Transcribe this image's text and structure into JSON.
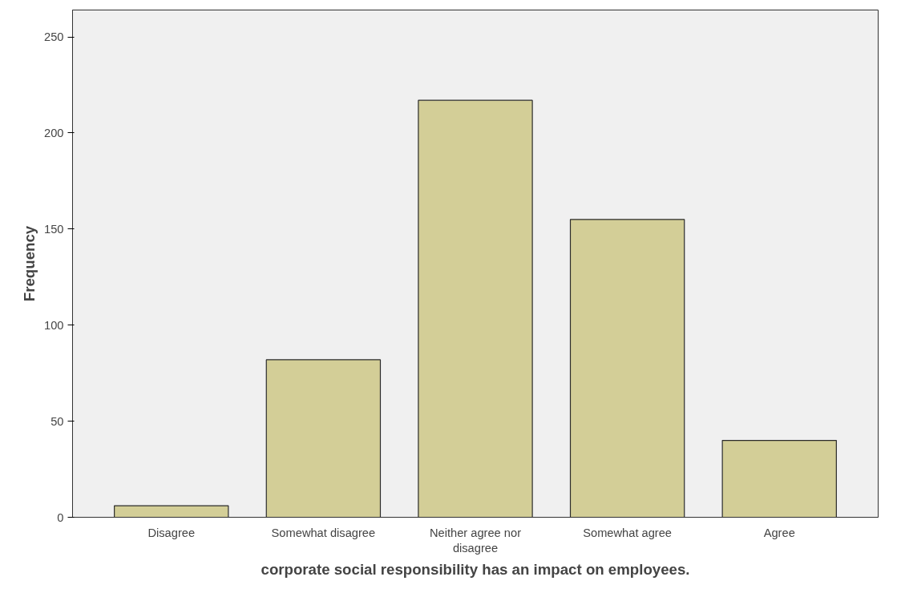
{
  "chart_data": {
    "type": "bar",
    "categories": [
      "Disagree",
      "Somewhat disagree",
      "Neither agree nor disagree",
      "Somewhat agree",
      "Agree"
    ],
    "values": [
      6,
      82,
      217,
      155,
      40
    ],
    "color": "#d3ce97",
    "xlabel": "corporate social responsibility has an impact on employees.",
    "ylabel": "Frequency",
    "ylim": [
      0,
      264
    ],
    "yticks": [
      0,
      50,
      100,
      150,
      200,
      250
    ],
    "grid": false
  }
}
